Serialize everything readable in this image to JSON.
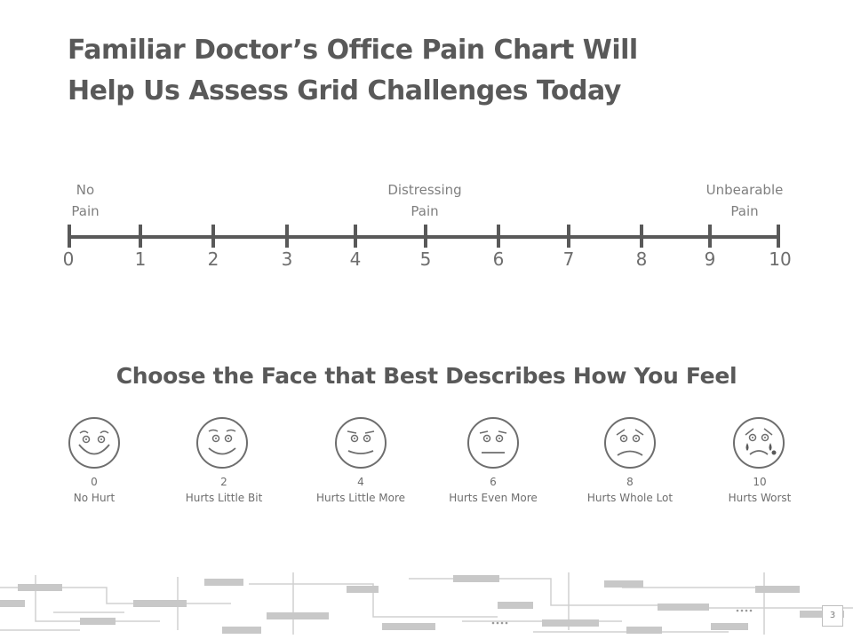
{
  "title": {
    "line1": "Familiar Doctor’s Office Pain Chart Will",
    "line2": "Help Us Assess Grid Challenges Today"
  },
  "scale": {
    "labels": [
      {
        "line1": "No",
        "line2": "Pain"
      },
      {
        "line1": "Distressing",
        "line2": "Pain"
      },
      {
        "line1": "Unbearable",
        "line2": "Pain"
      }
    ],
    "ticks": [
      "0",
      "1",
      "2",
      "3",
      "4",
      "5",
      "6",
      "7",
      "8",
      "9",
      "10"
    ]
  },
  "faces_heading": "Choose the Face that Best Describes How You Feel",
  "faces": [
    {
      "value": "0",
      "label": "No Hurt"
    },
    {
      "value": "2",
      "label": "Hurts Little Bit"
    },
    {
      "value": "4",
      "label": "Hurts Little More"
    },
    {
      "value": "6",
      "label": "Hurts Even More"
    },
    {
      "value": "8",
      "label": "Hurts Whole Lot"
    },
    {
      "value": "10",
      "label": "Hurts Worst"
    }
  ],
  "page_number": "3",
  "colors": {
    "text": "#595959",
    "line": "#595959",
    "light": "#bfbfbf"
  }
}
